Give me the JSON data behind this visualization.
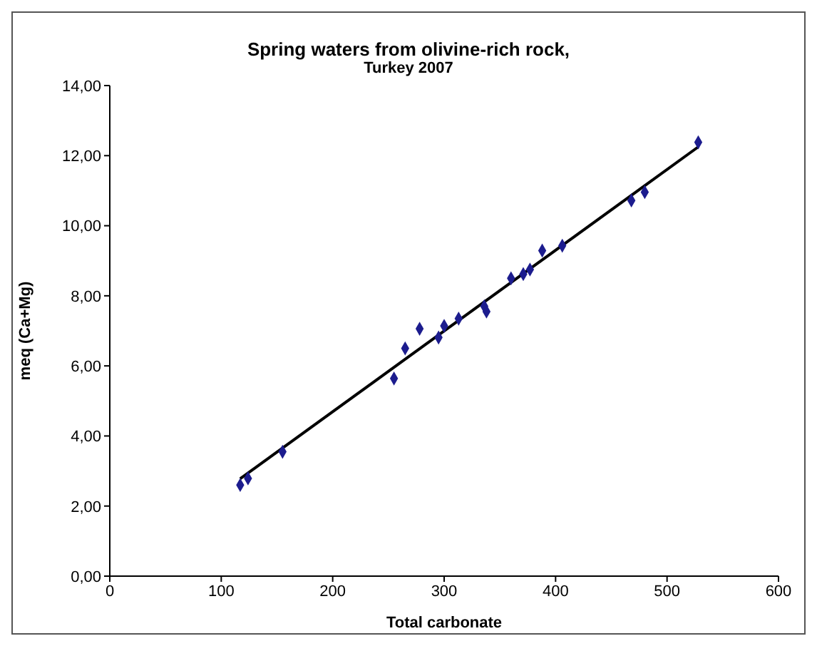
{
  "chart_data": {
    "type": "scatter",
    "title": "Spring waters from olivine-rich rock,",
    "subtitle": "Turkey 2007",
    "xlabel": "Total carbonate",
    "ylabel": "meq (Ca+Mg)",
    "marker": "diamond",
    "grid": false,
    "xlim": [
      0,
      600
    ],
    "xticks": [
      0,
      100,
      200,
      300,
      400,
      500,
      600
    ],
    "ylim": [
      0,
      14
    ],
    "yticks": [
      {
        "value": 0,
        "label": "0,00"
      },
      {
        "value": 2,
        "label": "2,00"
      },
      {
        "value": 4,
        "label": "4,00"
      },
      {
        "value": 6,
        "label": "6,00"
      },
      {
        "value": 8,
        "label": "8,00"
      },
      {
        "value": 10,
        "label": "10,00"
      },
      {
        "value": 12,
        "label": "12,00"
      },
      {
        "value": 14,
        "label": "14,00"
      }
    ],
    "series": [
      {
        "color": "#1c1c8e",
        "x": [
          117,
          124,
          155,
          255,
          265,
          278,
          295,
          300,
          313,
          336,
          338,
          360,
          371,
          377,
          388,
          406,
          468,
          480,
          528
        ],
        "values": [
          2.6,
          2.79,
          3.55,
          5.64,
          6.5,
          7.06,
          6.81,
          7.14,
          7.35,
          7.7,
          7.55,
          8.5,
          8.62,
          8.75,
          9.29,
          9.43,
          10.72,
          10.96,
          12.38
        ]
      },
      {
        "type": "line",
        "color": "#000000",
        "marker": "none",
        "x": [
          117,
          528
        ],
        "values": [
          2.78,
          12.25
        ]
      }
    ]
  }
}
